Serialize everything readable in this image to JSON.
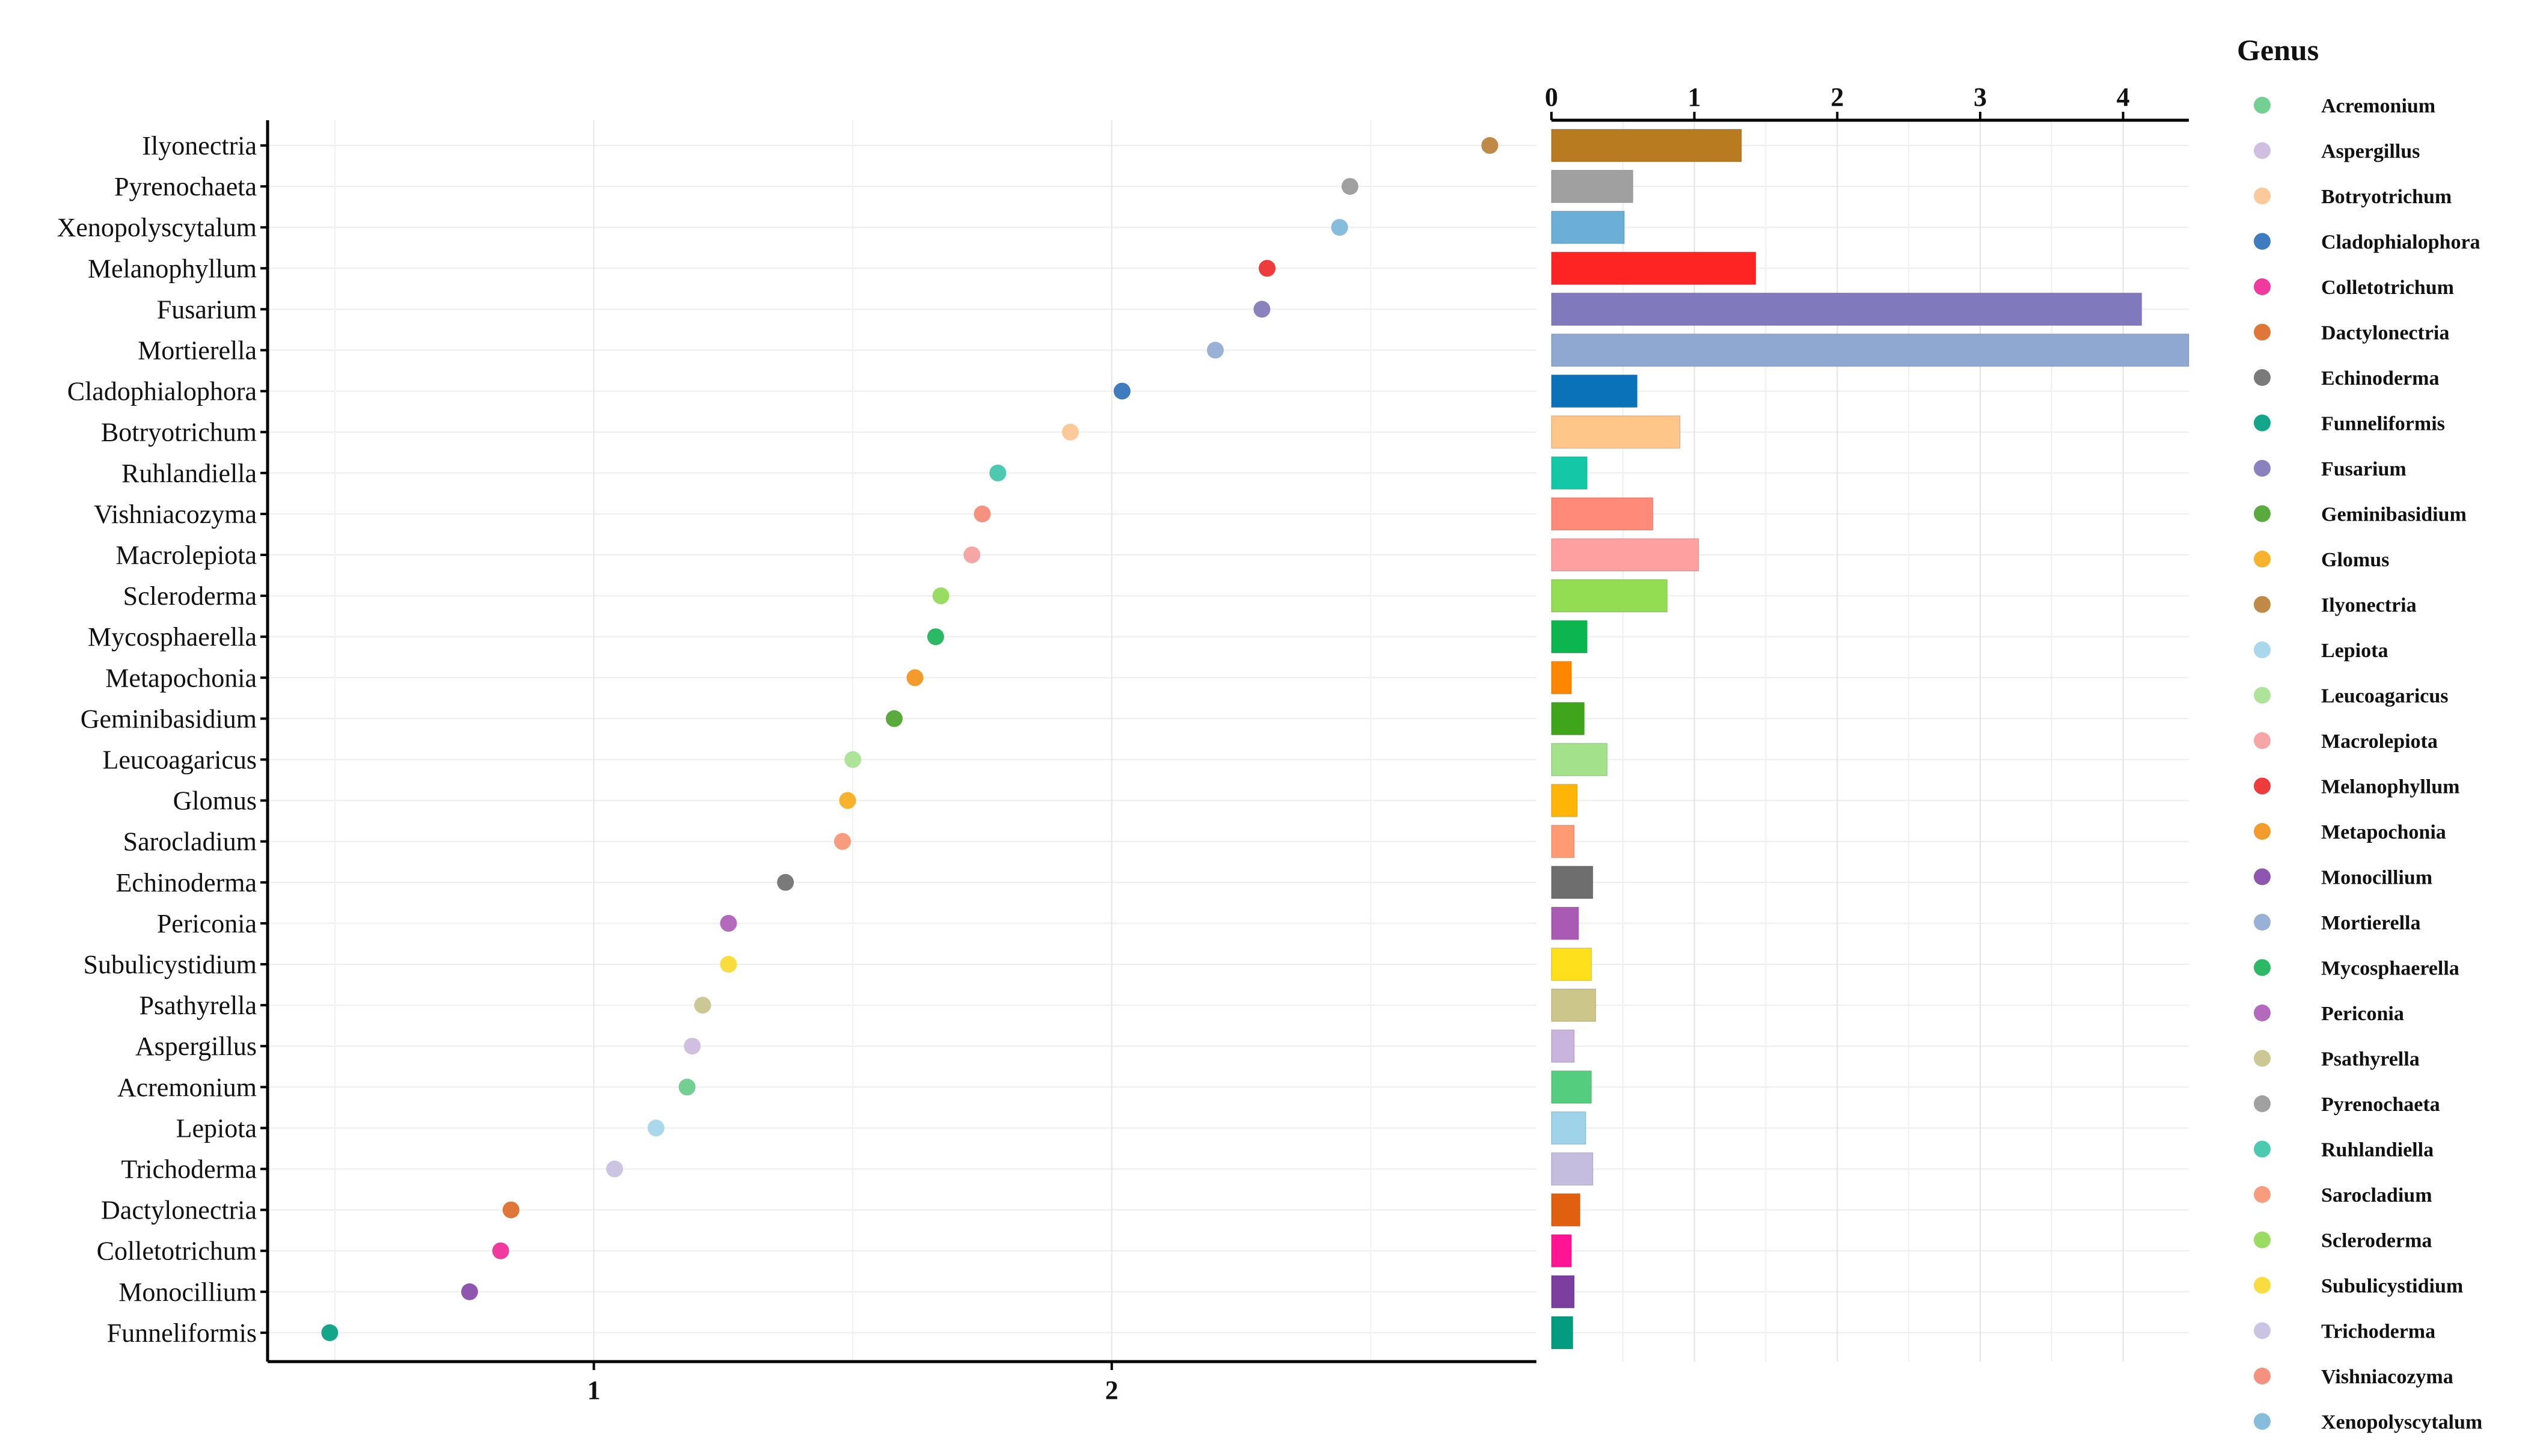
{
  "chart_data": {
    "type": "scatter-bar",
    "legend_title": "Genus",
    "legend_position": "right",
    "grid": true,
    "rows": [
      {
        "genus": "Ilyonectria",
        "lda": 2.73,
        "abundance": 1.33,
        "color": "#B87B1F",
        "dot_color": "#BE8A45"
      },
      {
        "genus": "Pyrenochaeta",
        "lda": 2.46,
        "abundance": 0.57,
        "color": "#A0A0A0",
        "dot_color": "#A0A0A0"
      },
      {
        "genus": "Xenopolyscytalum",
        "lda": 2.44,
        "abundance": 0.51,
        "color": "#6BAED6",
        "dot_color": "#86BDDB"
      },
      {
        "genus": "Melanophyllum",
        "lda": 2.3,
        "abundance": 1.43,
        "color": "#FF2424",
        "dot_color": "#EE3B3B"
      },
      {
        "genus": "Fusarium",
        "lda": 2.29,
        "abundance": 4.13,
        "color": "#8079BC",
        "dot_color": "#8A82BE"
      },
      {
        "genus": "Mortierella",
        "lda": 2.2,
        "abundance": 4.46,
        "color": "#8EA8D1",
        "dot_color": "#9AB1D6"
      },
      {
        "genus": "Cladophialophora",
        "lda": 2.02,
        "abundance": 0.6,
        "color": "#0A72B9",
        "dot_color": "#3E7CBF"
      },
      {
        "genus": "Botryotrichum",
        "lda": 1.92,
        "abundance": 0.9,
        "color": "#FFC68A",
        "dot_color": "#FCC99A"
      },
      {
        "genus": "Ruhlandiella",
        "lda": 1.78,
        "abundance": 0.25,
        "color": "#13C7A7",
        "dot_color": "#4CC9B0"
      },
      {
        "genus": "Vishniacozyma",
        "lda": 1.75,
        "abundance": 0.71,
        "color": "#FF8A7A",
        "dot_color": "#F4917F"
      },
      {
        "genus": "Macrolepiota",
        "lda": 1.73,
        "abundance": 1.03,
        "color": "#FFA0A0",
        "dot_color": "#F7A6A6"
      },
      {
        "genus": "Scleroderma",
        "lda": 1.67,
        "abundance": 0.81,
        "color": "#92DD52",
        "dot_color": "#98DC62"
      },
      {
        "genus": "Mycosphaerella",
        "lda": 1.66,
        "abundance": 0.25,
        "color": "#0BB64E",
        "dot_color": "#2DB865"
      },
      {
        "genus": "Metapochonia",
        "lda": 1.62,
        "abundance": 0.14,
        "color": "#FF8700",
        "dot_color": "#F39C2E"
      },
      {
        "genus": "Geminibasidium",
        "lda": 1.58,
        "abundance": 0.23,
        "color": "#3FA51B",
        "dot_color": "#5BAA3E"
      },
      {
        "genus": "Leucoagaricus",
        "lda": 1.5,
        "abundance": 0.39,
        "color": "#A3E18A",
        "dot_color": "#AEE39A"
      },
      {
        "genus": "Glomus",
        "lda": 1.49,
        "abundance": 0.18,
        "color": "#FFB505",
        "dot_color": "#F7B32B"
      },
      {
        "genus": "Sarocladium",
        "lda": 1.48,
        "abundance": 0.16,
        "color": "#FF9A73",
        "dot_color": "#F79C7D"
      },
      {
        "genus": "Echinoderma",
        "lda": 1.37,
        "abundance": 0.29,
        "color": "#6E6E6E",
        "dot_color": "#7A7A7A"
      },
      {
        "genus": "Periconia",
        "lda": 1.26,
        "abundance": 0.19,
        "color": "#A95AB3",
        "dot_color": "#B46ABC"
      },
      {
        "genus": "Subulicystidium",
        "lda": 1.26,
        "abundance": 0.28,
        "color": "#FFE01A",
        "dot_color": "#F9DD40"
      },
      {
        "genus": "Psathyrella",
        "lda": 1.21,
        "abundance": 0.31,
        "color": "#CCC68A",
        "dot_color": "#CCC893"
      },
      {
        "genus": "Aspergillus",
        "lda": 1.19,
        "abundance": 0.16,
        "color": "#C8B4DC",
        "dot_color": "#D0BFE0"
      },
      {
        "genus": "Acremonium",
        "lda": 1.18,
        "abundance": 0.28,
        "color": "#55CD7E",
        "dot_color": "#74CF92"
      },
      {
        "genus": "Lepiota",
        "lda": 1.12,
        "abundance": 0.24,
        "color": "#9ED3EA",
        "dot_color": "#A9D7EB"
      },
      {
        "genus": "Trichoderma",
        "lda": 1.04,
        "abundance": 0.29,
        "color": "#C4BDDF",
        "dot_color": "#CBC5E3"
      },
      {
        "genus": "Dactylonectria",
        "lda": 0.84,
        "abundance": 0.2,
        "color": "#E06010",
        "dot_color": "#DE7738"
      },
      {
        "genus": "Colletotrichum",
        "lda": 0.82,
        "abundance": 0.14,
        "color": "#FF1493",
        "dot_color": "#F03A9E"
      },
      {
        "genus": "Monocillium",
        "lda": 0.76,
        "abundance": 0.16,
        "color": "#7B3FA0",
        "dot_color": "#8E56AE"
      },
      {
        "genus": "Funneliformis",
        "lda": 0.49,
        "abundance": 0.15,
        "color": "#039C80",
        "dot_color": "#13A68B"
      }
    ],
    "dot_axis": {
      "ticks": [
        "1",
        "2"
      ],
      "tick_values": [
        1,
        2
      ],
      "xlim": [
        0.37,
        2.82
      ]
    },
    "bar_axis": {
      "ticks": [
        "0",
        "1",
        "2",
        "3",
        "4"
      ],
      "tick_values": [
        0,
        1,
        2,
        3,
        4
      ],
      "xlim": [
        0,
        4.46
      ],
      "position": "top"
    },
    "legend": [
      {
        "label": "Acremonium",
        "color": "#74CF92"
      },
      {
        "label": "Aspergillus",
        "color": "#D0BFE0"
      },
      {
        "label": "Botryotrichum",
        "color": "#FCC99A"
      },
      {
        "label": "Cladophialophora",
        "color": "#3E7CBF"
      },
      {
        "label": "Colletotrichum",
        "color": "#F03A9E"
      },
      {
        "label": "Dactylonectria",
        "color": "#DE7738"
      },
      {
        "label": "Echinoderma",
        "color": "#7A7A7A"
      },
      {
        "label": "Funneliformis",
        "color": "#13A68B"
      },
      {
        "label": "Fusarium",
        "color": "#8A82BE"
      },
      {
        "label": "Geminibasidium",
        "color": "#5BAA3E"
      },
      {
        "label": "Glomus",
        "color": "#F7B32B"
      },
      {
        "label": "Ilyonectria",
        "color": "#BE8A45"
      },
      {
        "label": "Lepiota",
        "color": "#A9D7EB"
      },
      {
        "label": "Leucoagaricus",
        "color": "#AEE39A"
      },
      {
        "label": "Macrolepiota",
        "color": "#F7A6A6"
      },
      {
        "label": "Melanophyllum",
        "color": "#EE3B3B"
      },
      {
        "label": "Metapochonia",
        "color": "#F39C2E"
      },
      {
        "label": "Monocillium",
        "color": "#8E56AE"
      },
      {
        "label": "Mortierella",
        "color": "#9AB1D6"
      },
      {
        "label": "Mycosphaerella",
        "color": "#2DB865"
      },
      {
        "label": "Periconia",
        "color": "#B46ABC"
      },
      {
        "label": "Psathyrella",
        "color": "#CCC893"
      },
      {
        "label": "Pyrenochaeta",
        "color": "#A0A0A0"
      },
      {
        "label": "Ruhlandiella",
        "color": "#4CC9B0"
      },
      {
        "label": "Sarocladium",
        "color": "#F79C7D"
      },
      {
        "label": "Scleroderma",
        "color": "#98DC62"
      },
      {
        "label": "Subulicystidium",
        "color": "#F9DD40"
      },
      {
        "label": "Trichoderma",
        "color": "#CBC5E3"
      },
      {
        "label": "Vishniacozyma",
        "color": "#F4917F"
      },
      {
        "label": "Xenopolyscytalum",
        "color": "#86BDDB"
      }
    ]
  }
}
